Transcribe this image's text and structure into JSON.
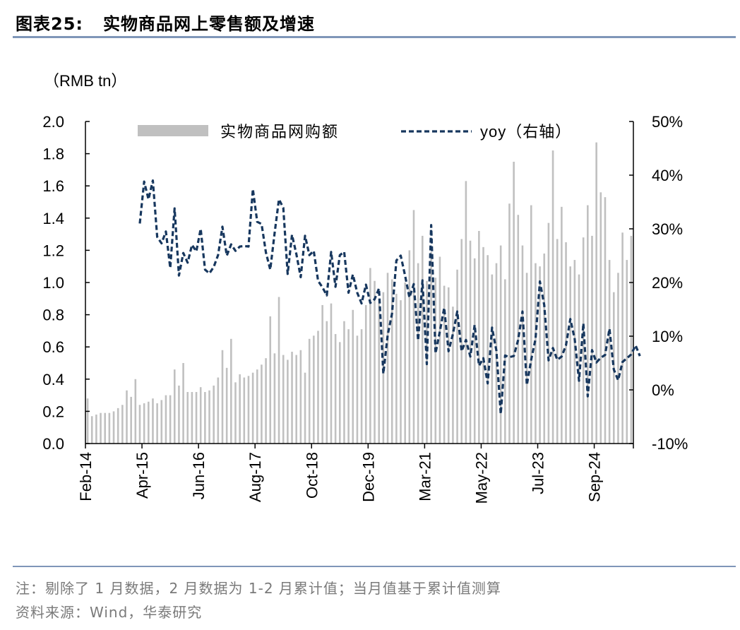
{
  "figure": {
    "label": "图表25:",
    "title": "实物商品网上零售额及增速"
  },
  "footer": {
    "note": "注：剔除了 1 月数据，2 月数据为 1-2 月累计值；当月值基于累计值测算",
    "source": "资料来源：Wind，华泰研究"
  },
  "colors": {
    "bars": "#c0c0c0",
    "yoy_line": "#17375e",
    "rule": "#7f96b8"
  },
  "chart_data": {
    "type": "bar+line",
    "left_axis_unit": "（RMB tn）",
    "left_ylim": [
      0,
      2.0
    ],
    "left_ticks": [
      "0.0",
      "0.2",
      "0.4",
      "0.6",
      "0.8",
      "1.0",
      "1.2",
      "1.4",
      "1.6",
      "1.8",
      "2.0"
    ],
    "right_ylim": [
      -10,
      50
    ],
    "right_ticks": [
      "-10%",
      "0%",
      "10%",
      "20%",
      "30%",
      "40%",
      "50%"
    ],
    "x_tick_labels": [
      "Feb-14",
      "Apr-15",
      "Jun-16",
      "Aug-17",
      "Oct-18",
      "Dec-19",
      "Mar-21",
      "May-22",
      "Jul-23",
      "Sep-24"
    ],
    "legend": {
      "bars": "实物商品网购额",
      "line": "yoy（右轴）"
    },
    "months": [
      "Feb-14",
      "Mar-14",
      "Apr-14",
      "May-14",
      "Jun-14",
      "Jul-14",
      "Aug-14",
      "Sep-14",
      "Oct-14",
      "Nov-14",
      "Dec-14",
      "Feb-15",
      "Mar-15",
      "Apr-15",
      "May-15",
      "Jun-15",
      "Jul-15",
      "Aug-15",
      "Sep-15",
      "Oct-15",
      "Nov-15",
      "Dec-15",
      "Feb-16",
      "Mar-16",
      "Apr-16",
      "May-16",
      "Jun-16",
      "Jul-16",
      "Aug-16",
      "Sep-16",
      "Oct-16",
      "Nov-16",
      "Dec-16",
      "Feb-17",
      "Mar-17",
      "Apr-17",
      "May-17",
      "Jun-17",
      "Jul-17",
      "Aug-17",
      "Sep-17",
      "Oct-17",
      "Nov-17",
      "Dec-17",
      "Feb-18",
      "Mar-18",
      "Apr-18",
      "May-18",
      "Jun-18",
      "Jul-18",
      "Aug-18",
      "Sep-18",
      "Oct-18",
      "Nov-18",
      "Dec-18",
      "Feb-19",
      "Mar-19",
      "Apr-19",
      "May-19",
      "Jun-19",
      "Jul-19",
      "Aug-19",
      "Sep-19",
      "Oct-19",
      "Nov-19",
      "Dec-19",
      "Feb-20",
      "Mar-20",
      "Apr-20",
      "May-20",
      "Jun-20",
      "Jul-20",
      "Aug-20",
      "Sep-20",
      "Oct-20",
      "Nov-20",
      "Dec-20",
      "Feb-21",
      "Mar-21",
      "Apr-21",
      "May-21",
      "Jun-21",
      "Jul-21",
      "Aug-21",
      "Sep-21",
      "Oct-21",
      "Nov-21",
      "Dec-21",
      "Feb-22",
      "Mar-22",
      "Apr-22",
      "May-22",
      "Jun-22",
      "Jul-22",
      "Aug-22",
      "Sep-22",
      "Oct-22",
      "Nov-22",
      "Dec-22",
      "Feb-23",
      "Mar-23",
      "Apr-23",
      "May-23",
      "Jun-23",
      "Jul-23",
      "Aug-23",
      "Sep-23",
      "Oct-23",
      "Nov-23",
      "Dec-23",
      "Feb-24",
      "Mar-24",
      "Apr-24",
      "May-24",
      "Jun-24",
      "Jul-24",
      "Aug-24",
      "Sep-24",
      "Oct-24",
      "Nov-24",
      "Dec-24",
      "Feb-25",
      "Mar-25",
      "Apr-25",
      "May-25",
      "Jun-25"
    ],
    "sales_rmb_tn": [
      0.28,
      0.17,
      0.18,
      0.19,
      0.19,
      0.19,
      0.2,
      0.22,
      0.24,
      0.33,
      0.29,
      0.4,
      0.24,
      0.25,
      0.26,
      0.28,
      0.25,
      0.27,
      0.3,
      0.3,
      0.46,
      0.36,
      0.5,
      0.32,
      0.32,
      0.32,
      0.35,
      0.32,
      0.33,
      0.36,
      0.41,
      0.58,
      0.47,
      0.65,
      0.38,
      0.43,
      0.41,
      0.42,
      0.44,
      0.46,
      0.49,
      0.53,
      0.79,
      0.56,
      0.91,
      0.55,
      0.52,
      0.57,
      0.55,
      0.58,
      0.44,
      0.65,
      0.67,
      0.7,
      0.86,
      0.76,
      0.87,
      0.68,
      0.63,
      0.76,
      0.71,
      0.83,
      0.67,
      0.71,
      0.86,
      1.09,
      1.01,
      0.9,
      0.94,
      1.06,
      1.02,
      0.93,
      0.89,
      1.0,
      1.2,
      1.45,
      1.12,
      1.29,
      1.01,
      1.19,
      1.03,
      1.16,
      0.98,
      0.97,
      0.85,
      1.08,
      1.27,
      1.63,
      1.26,
      1.15,
      1.32,
      1.22,
      1.17,
      1.05,
      1.12,
      1.23,
      1.02,
      1.49,
      1.75,
      1.42,
      1.23,
      1.06,
      1.48,
      1.12,
      1.1,
      1.18,
      1.37,
      1.82,
      1.27,
      1.47,
      1.25,
      1.1,
      1.14,
      1.05,
      1.28,
      1.48,
      1.29,
      1.87,
      1.56,
      1.53,
      1.14,
      0.94,
      1.06,
      1.31,
      1.14,
      1.29
    ],
    "yoy_pct": [
      null,
      null,
      null,
      null,
      null,
      null,
      null,
      null,
      null,
      null,
      null,
      null,
      31.0,
      38.8,
      35.5,
      39.0,
      28.5,
      27.3,
      29.5,
      22.7,
      33.8,
      21.3,
      25.5,
      23.7,
      27.0,
      25.8,
      30.0,
      22.4,
      21.7,
      22.9,
      25.1,
      30.4,
      25.0,
      27.1,
      25.9,
      26.7,
      26.8,
      26.7,
      37.4,
      31.3,
      30.9,
      25.6,
      22.4,
      29.2,
      35.5,
      33.9,
      21.6,
      28.9,
      25.3,
      21.0,
      28.7,
      25.1,
      25.9,
      20.3,
      19.1,
      17.6,
      25.7,
      19.2,
      25.1,
      25.7,
      18.1,
      21.5,
      18.1,
      16.1,
      19.6,
      16.2,
      16.9,
      18.9,
      3.0,
      10.2,
      14.2,
      24.1,
      25.0,
      21.3,
      17.2,
      19.7,
      9.2,
      20.4,
      4.8,
      30.7,
      6.8,
      10.9,
      15.3,
      7.2,
      10.4,
      14.6,
      7.2,
      9.3,
      6.2,
      12.1,
      4.5,
      5.9,
      1.2,
      11.6,
      7.3,
      -4.5,
      6.4,
      6.1,
      6.3,
      9.3,
      14.6,
      0.9,
      5.6,
      9.5,
      20.2,
      15.8,
      5.5,
      7.8,
      5.6,
      6.2,
      8.3,
      13.2,
      9.5,
      1.7,
      12.4,
      -1.2,
      7.4,
      5.1,
      6.0,
      6.5,
      11.4,
      3.8,
      1.8,
      5.2,
      5.9,
      6.6,
      8.3,
      6.3
    ]
  }
}
